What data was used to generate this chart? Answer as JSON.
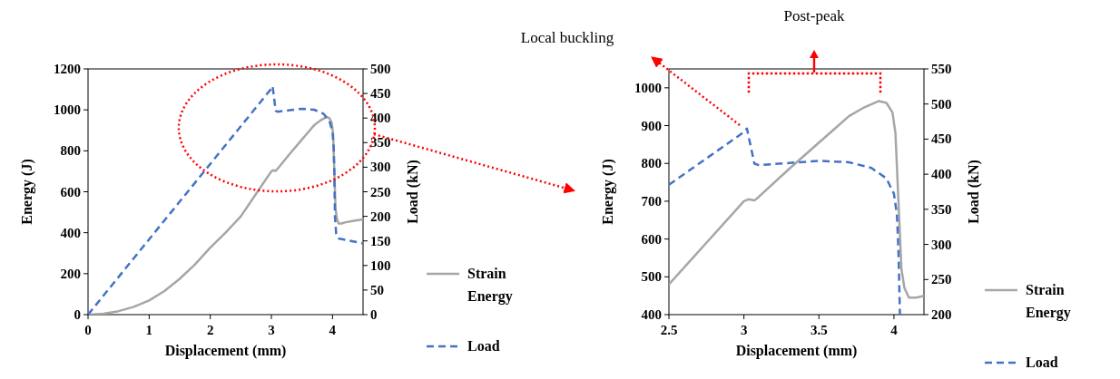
{
  "chart_data": [
    {
      "type": "line",
      "xlabel": "Displacement (mm)",
      "ylabel": "Energy (J)",
      "y2label": "Load (kN)",
      "xlim": [
        0,
        4.5
      ],
      "xticks": [
        0,
        1,
        2,
        3,
        4
      ],
      "ylim": [
        0,
        1200
      ],
      "yticks": [
        0,
        200,
        400,
        600,
        800,
        1000,
        1200
      ],
      "y2lim": [
        0,
        500
      ],
      "y2ticks": [
        0,
        50,
        100,
        150,
        200,
        250,
        300,
        350,
        400,
        450,
        500
      ],
      "grid": false,
      "legend": "right",
      "series": [
        {
          "name": "Strain Energy",
          "color": "#a6a6a6",
          "line_style": "solid",
          "x": [
            0,
            0.25,
            0.5,
            0.75,
            1,
            1.25,
            1.5,
            1.75,
            2,
            2.25,
            2.5,
            2.75,
            3,
            3.03,
            3.07,
            3.1,
            3.3,
            3.5,
            3.6,
            3.7,
            3.8,
            3.9,
            3.95,
            3.99,
            4.01,
            4.03,
            4.05,
            4.07,
            4.1,
            4.15,
            4.2,
            4.35,
            4.5
          ],
          "values": [
            0,
            4,
            17,
            38,
            69,
            115,
            175,
            245,
            327,
            400,
            480,
            590,
            700,
            705,
            702,
            712,
            785,
            855,
            890,
            925,
            948,
            965,
            960,
            935,
            880,
            700,
            520,
            470,
            445,
            445,
            450,
            458,
            465
          ]
        },
        {
          "name": "Load",
          "color": "#4472c4",
          "line_style": "dashed",
          "axis": "y2",
          "x": [
            0,
            3,
            3.02,
            3.07,
            3.1,
            3.3,
            3.5,
            3.7,
            3.85,
            3.95,
            4,
            4.02,
            4.03,
            4.04,
            4.06,
            4.08,
            4.1,
            4.3,
            4.5
          ],
          "values": [
            0,
            460,
            465,
            415,
            413,
            416,
            419,
            417,
            409,
            394,
            372,
            342,
            291,
            200,
            165,
            158,
            155,
            150,
            145
          ]
        }
      ]
    },
    {
      "type": "line",
      "xlabel": "Displacement (mm)",
      "ylabel": "Energy (J)",
      "y2label": "Load (kN)",
      "xlim": [
        2.5,
        4.2
      ],
      "xticks": [
        2.5,
        3,
        3.5,
        4
      ],
      "ylim": [
        400,
        1050
      ],
      "yticks": [
        400,
        500,
        600,
        700,
        800,
        900,
        1000
      ],
      "y2lim": [
        200,
        550
      ],
      "y2ticks": [
        200,
        250,
        300,
        350,
        400,
        450,
        500,
        550
      ],
      "grid": false,
      "legend": "right",
      "annotations": [
        "Local buckling",
        "Post-peak"
      ],
      "series": [
        {
          "name": "Strain Energy",
          "color": "#a6a6a6",
          "line_style": "solid",
          "x": [
            2.5,
            2.75,
            3,
            3.03,
            3.07,
            3.1,
            3.3,
            3.5,
            3.6,
            3.7,
            3.8,
            3.9,
            3.95,
            3.99,
            4.01,
            4.03,
            4.05,
            4.07,
            4.1,
            4.15,
            4.2
          ],
          "values": [
            480,
            590,
            700,
            705,
            702,
            712,
            785,
            855,
            890,
            925,
            948,
            965,
            960,
            935,
            880,
            700,
            520,
            470,
            445,
            445,
            450
          ]
        },
        {
          "name": "Load",
          "color": "#4472c4",
          "line_style": "dashed",
          "axis": "y2",
          "x": [
            2.5,
            3,
            3.02,
            3.07,
            3.1,
            3.3,
            3.5,
            3.7,
            3.85,
            3.95,
            4,
            4.02,
            4.03,
            4.04
          ],
          "values": [
            385,
            460,
            465,
            415,
            413,
            416,
            419,
            417,
            409,
            394,
            372,
            342,
            291,
            200
          ]
        }
      ]
    }
  ]
}
